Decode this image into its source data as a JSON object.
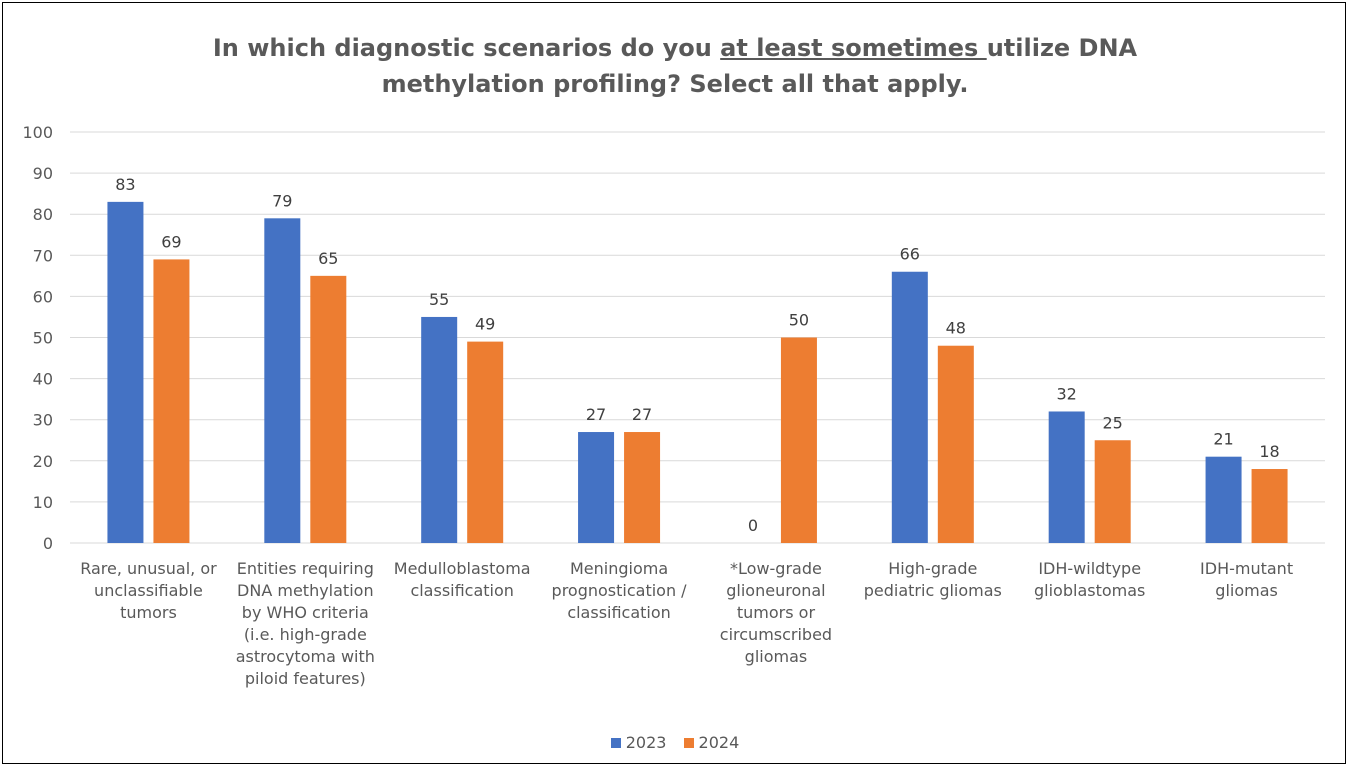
{
  "chart_data": {
    "type": "bar",
    "title_parts": {
      "line1_before": "In which diagnostic scenarios do you ",
      "line1_underlined": "at least sometimes ",
      "line1_after": "utilize DNA",
      "line2": "methylation profiling? Select all that apply."
    },
    "categories": [
      [
        "Rare, unusual, or",
        "unclassifiable",
        "tumors"
      ],
      [
        "Entities requiring",
        "DNA methylation",
        "by WHO criteria",
        "(i.e. high-grade",
        "astrocytoma with",
        "piloid features)"
      ],
      [
        "Medulloblastoma",
        "classification"
      ],
      [
        "Meningioma",
        "prognostication /",
        "classification"
      ],
      [
        "*Low-grade",
        "glioneuronal",
        "tumors or",
        "circumscribed",
        "gliomas"
      ],
      [
        "High-grade",
        "pediatric gliomas"
      ],
      [
        "IDH-wildtype",
        "glioblastomas"
      ],
      [
        "IDH-mutant",
        "gliomas"
      ]
    ],
    "series": [
      {
        "name": "2023",
        "color": "#4472C4",
        "values": [
          83,
          79,
          55,
          27,
          0,
          66,
          32,
          21
        ]
      },
      {
        "name": "2024",
        "color": "#ED7D31",
        "values": [
          69,
          65,
          49,
          27,
          50,
          48,
          25,
          18
        ]
      }
    ],
    "ylim": [
      0,
      100
    ],
    "yticks": [
      "0",
      "10",
      "20",
      "30",
      "40",
      "50",
      "60",
      "70",
      "80",
      "90",
      "100"
    ],
    "grid": true,
    "legend_position": "bottom"
  }
}
